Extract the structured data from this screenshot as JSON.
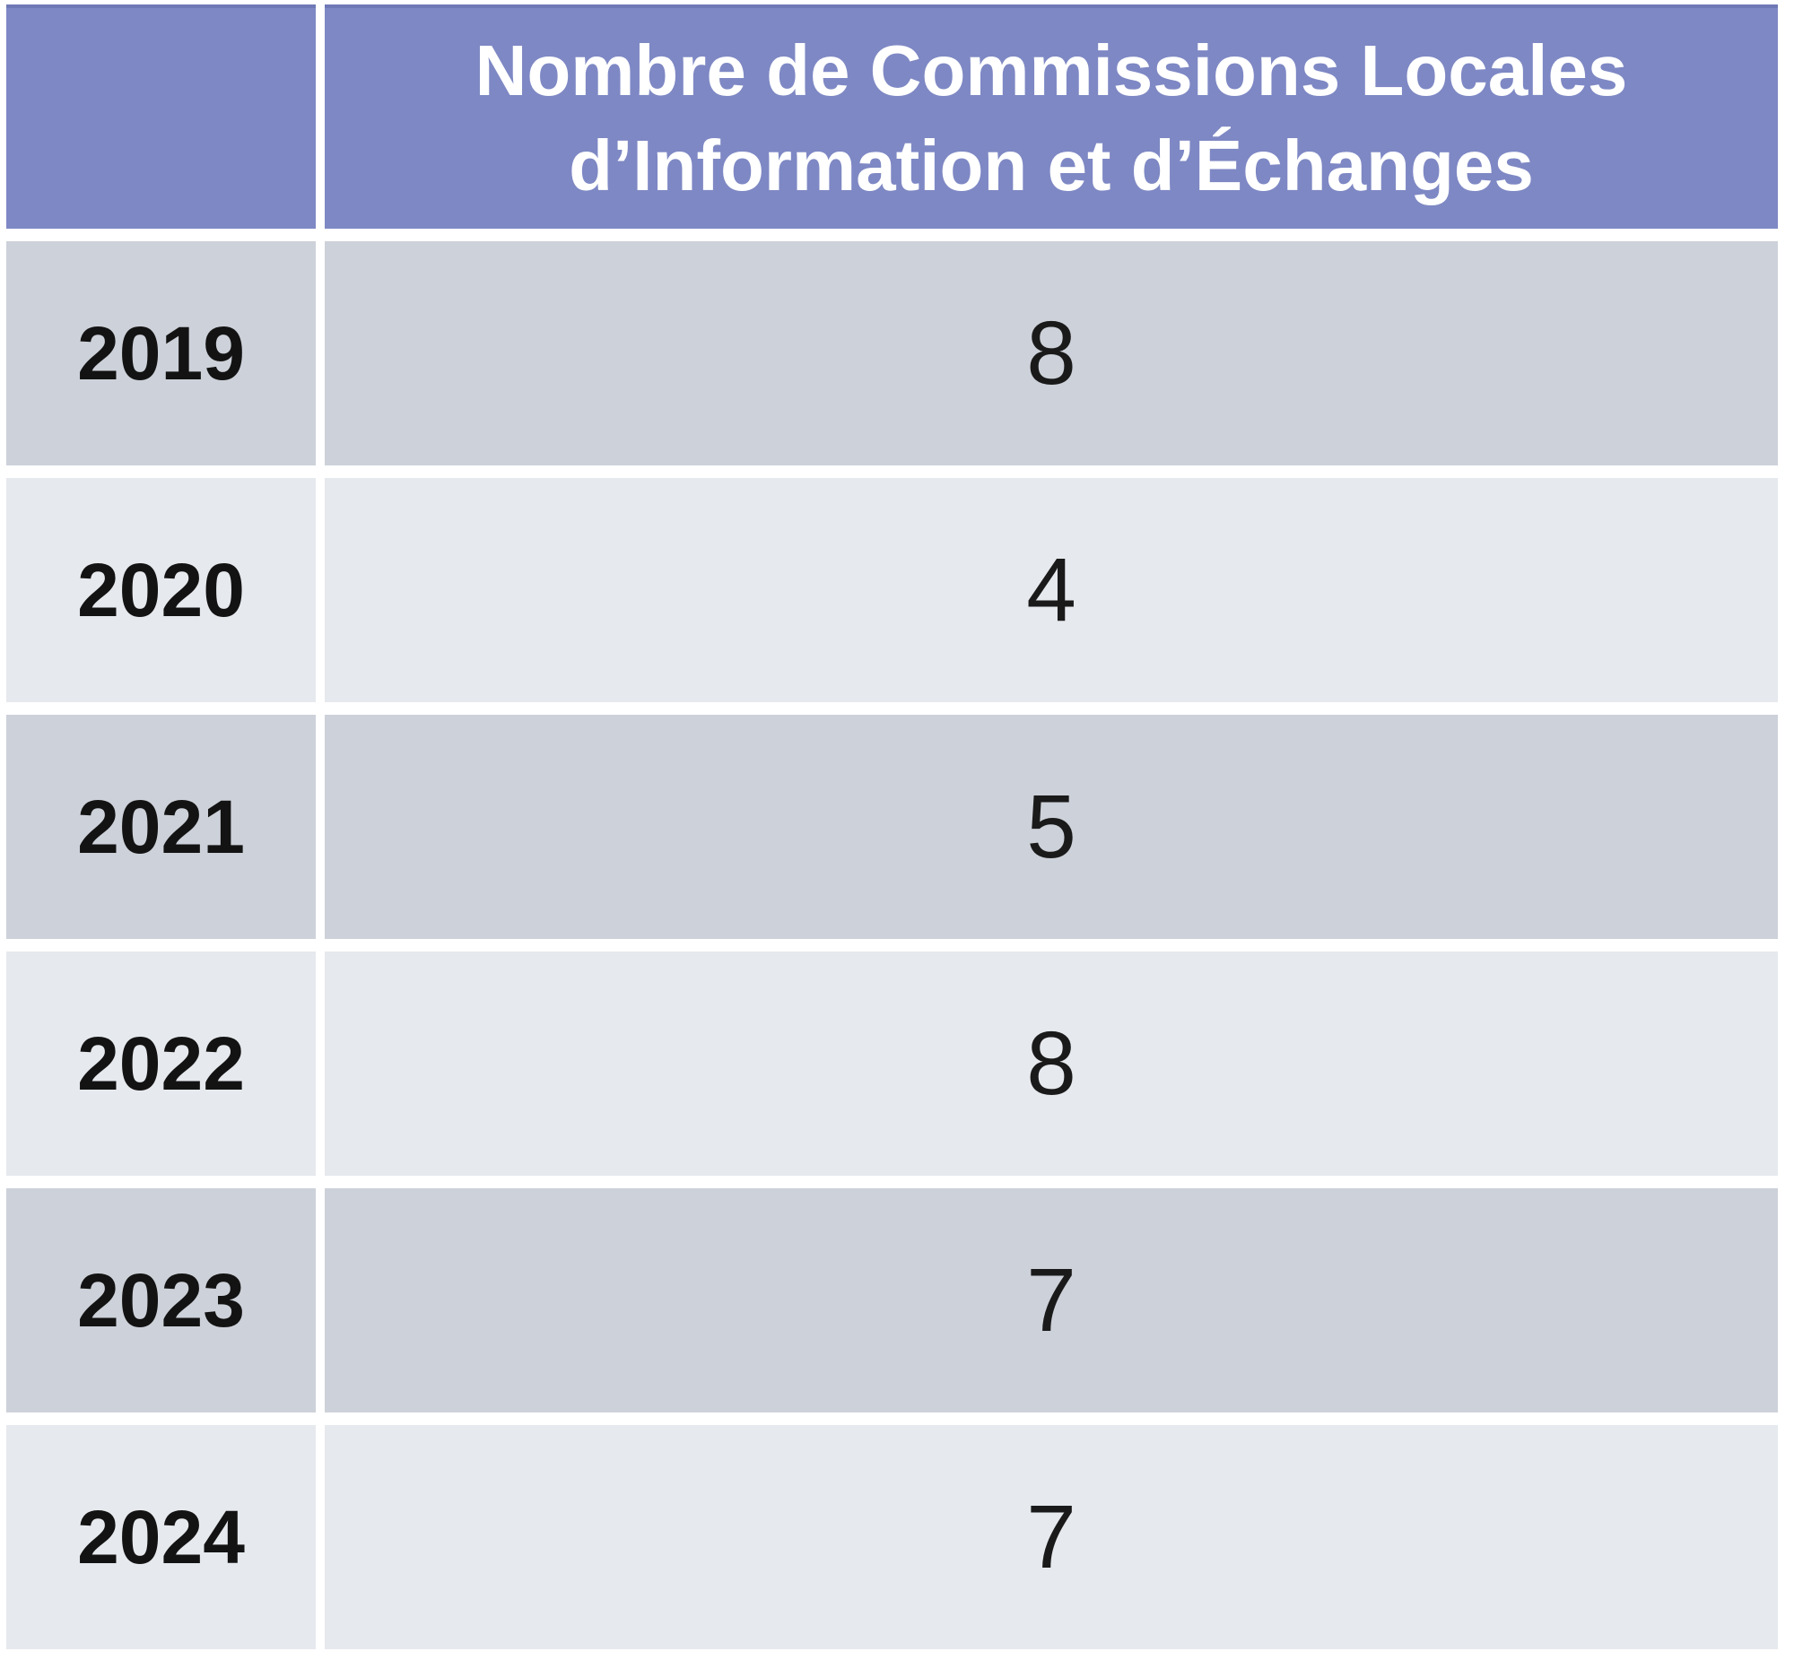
{
  "table": {
    "header": {
      "corner": "",
      "title": "Nombre de Commissions Locales d’Information et d’Échanges"
    },
    "rows": [
      {
        "year": "2019",
        "value": "8"
      },
      {
        "year": "2020",
        "value": "4"
      },
      {
        "year": "2021",
        "value": "5"
      },
      {
        "year": "2022",
        "value": "8"
      },
      {
        "year": "2023",
        "value": "7"
      },
      {
        "year": "2024",
        "value": "7"
      }
    ]
  },
  "colors": {
    "header_bg": "#7E88C4",
    "header_top_edge": "#6F79B5",
    "header_text": "#FFFFFF",
    "row_dark": "#CDD1D9",
    "row_light": "#E6E9ED",
    "body_text": "#131313",
    "background": "#FFFFFF"
  },
  "chart_data": {
    "type": "table",
    "title": "Nombre de Commissions Locales d’Information et d’Échanges",
    "columns": [
      "",
      "Nombre de Commissions Locales d’Information et d’Échanges"
    ],
    "categories": [
      "2019",
      "2020",
      "2021",
      "2022",
      "2023",
      "2024"
    ],
    "values": [
      8,
      4,
      5,
      8,
      7,
      7
    ],
    "layout_hints": {
      "header_position": "top",
      "row_striping": "alternating dark/light gray",
      "first_column": "years (bold)",
      "second_column": "counts (centered)"
    }
  }
}
